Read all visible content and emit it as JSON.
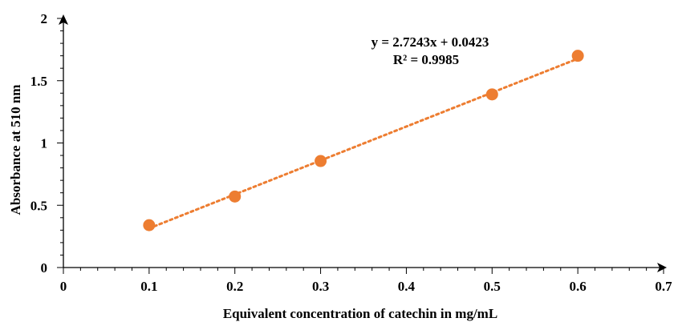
{
  "chart_data": {
    "type": "scatter",
    "xlabel": "Equivalent concentration of catechin in mg/mL",
    "ylabel": "Absorbance at 510 nm",
    "xlim": [
      0,
      0.7
    ],
    "ylim": [
      0,
      2
    ],
    "x_ticks": [
      0,
      0.1,
      0.2,
      0.3,
      0.4,
      0.5,
      0.6,
      0.7
    ],
    "y_ticks": [
      0,
      0.5,
      1,
      1.5,
      2
    ],
    "x_tick_labels": [
      "0",
      "0.1",
      "0.2",
      "0.3",
      "0.4",
      "0.5",
      "0.6",
      "0.7"
    ],
    "y_tick_labels": [
      "0",
      "0.5",
      "1",
      "1.5",
      "2"
    ],
    "series": [
      {
        "x": [
          0.1,
          0.2,
          0.3,
          0.5,
          0.6
        ],
        "y": [
          0.34,
          0.57,
          0.855,
          1.39,
          1.7
        ]
      }
    ],
    "trendline": {
      "type": "linear",
      "slope": 2.7243,
      "intercept": 0.0423,
      "style": "dotted",
      "equation_label": "y = 2.7243x + 0.0423",
      "r2_label": "R² = 0.9985"
    },
    "grid": false,
    "legend": "none",
    "colors": {
      "marker": "#ED7D31",
      "trendline": "#ED7D31",
      "axis": "#000000"
    }
  }
}
